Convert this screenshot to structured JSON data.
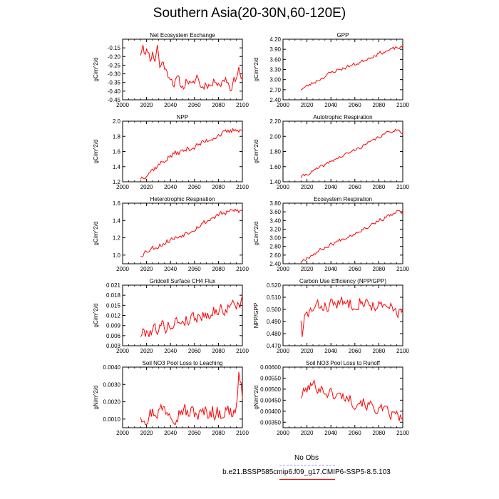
{
  "title": "Southern Asia(20-30N,60-120E)",
  "legend": {
    "obs_label": "No Obs",
    "obs_color": "#9999ff",
    "model_label": "b.e21.BSSP585cmip6.f09_g17.CMIP6-SSP5-8.5.103",
    "model_color": "#ff0000"
  },
  "chart_data": [
    {
      "type": "line",
      "title": "Net Ecosystem Exchange",
      "ylabel": "gC/m^2/d",
      "xlim": [
        2000,
        2100
      ],
      "xticks": [
        "2000",
        "2020",
        "2040",
        "2060",
        "2080",
        "2100"
      ],
      "ylim": [
        -0.45,
        -0.1
      ],
      "yticks": [
        "-0.45",
        "-0.40",
        "-0.35",
        "-0.30",
        "-0.25",
        "-0.20",
        "-0.15"
      ],
      "ytick_values": [
        -0.45,
        -0.4,
        -0.35,
        -0.3,
        -0.25,
        -0.2,
        -0.15
      ],
      "x_start": 2015,
      "x_end": 2100,
      "keypoints": [
        [
          2015,
          -0.18
        ],
        [
          2017,
          -0.12
        ],
        [
          2019,
          -0.19
        ],
        [
          2021,
          -0.16
        ],
        [
          2023,
          -0.21
        ],
        [
          2025,
          -0.18
        ],
        [
          2027,
          -0.22
        ],
        [
          2029,
          -0.13
        ],
        [
          2031,
          -0.26
        ],
        [
          2034,
          -0.23
        ],
        [
          2037,
          -0.3
        ],
        [
          2040,
          -0.31
        ],
        [
          2043,
          -0.36
        ],
        [
          2046,
          -0.33
        ],
        [
          2050,
          -0.38
        ],
        [
          2054,
          -0.33
        ],
        [
          2058,
          -0.38
        ],
        [
          2062,
          -0.31
        ],
        [
          2066,
          -0.38
        ],
        [
          2070,
          -0.35
        ],
        [
          2074,
          -0.37
        ],
        [
          2078,
          -0.33
        ],
        [
          2082,
          -0.36
        ],
        [
          2086,
          -0.32
        ],
        [
          2090,
          -0.38
        ],
        [
          2094,
          -0.33
        ],
        [
          2097,
          -0.27
        ],
        [
          2100,
          -0.34
        ]
      ],
      "noise": 0.025,
      "seed": 11,
      "color": "#ff0000"
    },
    {
      "type": "line",
      "title": "GPP",
      "ylabel": "gC/m^2/d",
      "xlim": [
        2000,
        2100
      ],
      "xticks": [
        "2000",
        "2020",
        "2040",
        "2060",
        "2080",
        "2100"
      ],
      "ylim": [
        2.4,
        4.2
      ],
      "yticks": [
        "2.40",
        "2.70",
        "3.00",
        "3.30",
        "3.60",
        "3.90",
        "4.20"
      ],
      "ytick_values": [
        2.4,
        2.7,
        3.0,
        3.3,
        3.6,
        3.9,
        4.2
      ],
      "x_start": 2015,
      "x_end": 2100,
      "keypoints": [
        [
          2015,
          2.72
        ],
        [
          2020,
          2.8
        ],
        [
          2025,
          2.9
        ],
        [
          2030,
          3.0
        ],
        [
          2035,
          3.1
        ],
        [
          2040,
          3.2
        ],
        [
          2045,
          3.28
        ],
        [
          2050,
          3.33
        ],
        [
          2055,
          3.4
        ],
        [
          2060,
          3.45
        ],
        [
          2065,
          3.52
        ],
        [
          2070,
          3.62
        ],
        [
          2075,
          3.7
        ],
        [
          2080,
          3.78
        ],
        [
          2085,
          3.83
        ],
        [
          2090,
          3.88
        ],
        [
          2095,
          3.95
        ],
        [
          2100,
          3.93
        ]
      ],
      "noise": 0.05,
      "seed": 23,
      "color": "#ff0000"
    },
    {
      "type": "line",
      "title": "NPP",
      "ylabel": "gC/m^2/d",
      "xlim": [
        2000,
        2100
      ],
      "xticks": [
        "2000",
        "2020",
        "2040",
        "2060",
        "2080",
        "2100"
      ],
      "ylim": [
        1.2,
        2.0
      ],
      "yticks": [
        "1.2",
        "1.4",
        "1.6",
        "1.8",
        "2.0"
      ],
      "ytick_values": [
        1.2,
        1.4,
        1.6,
        1.8,
        2.0
      ],
      "x_start": 2015,
      "x_end": 2100,
      "keypoints": [
        [
          2015,
          1.25
        ],
        [
          2020,
          1.3
        ],
        [
          2025,
          1.36
        ],
        [
          2030,
          1.42
        ],
        [
          2035,
          1.48
        ],
        [
          2040,
          1.54
        ],
        [
          2045,
          1.58
        ],
        [
          2050,
          1.6
        ],
        [
          2055,
          1.64
        ],
        [
          2060,
          1.66
        ],
        [
          2065,
          1.7
        ],
        [
          2070,
          1.74
        ],
        [
          2075,
          1.78
        ],
        [
          2080,
          1.82
        ],
        [
          2085,
          1.84
        ],
        [
          2090,
          1.86
        ],
        [
          2095,
          1.9
        ],
        [
          2100,
          1.88
        ]
      ],
      "noise": 0.035,
      "seed": 37,
      "color": "#ff0000"
    },
    {
      "type": "line",
      "title": "Autotrophic Respiration",
      "ylabel": "gC/m^2/d",
      "xlim": [
        2000,
        2100
      ],
      "xticks": [
        "2000",
        "2020",
        "2040",
        "2060",
        "2080",
        "2100"
      ],
      "ylim": [
        1.4,
        2.2
      ],
      "yticks": [
        "1.40",
        "1.60",
        "1.80",
        "2.00",
        "2.20"
      ],
      "ytick_values": [
        1.4,
        1.6,
        1.8,
        2.0,
        2.2
      ],
      "x_start": 2015,
      "x_end": 2100,
      "keypoints": [
        [
          2015,
          1.46
        ],
        [
          2020,
          1.5
        ],
        [
          2025,
          1.54
        ],
        [
          2030,
          1.58
        ],
        [
          2035,
          1.62
        ],
        [
          2040,
          1.67
        ],
        [
          2045,
          1.71
        ],
        [
          2050,
          1.74
        ],
        [
          2055,
          1.78
        ],
        [
          2060,
          1.82
        ],
        [
          2065,
          1.86
        ],
        [
          2070,
          1.9
        ],
        [
          2075,
          1.94
        ],
        [
          2080,
          1.99
        ],
        [
          2085,
          2.03
        ],
        [
          2090,
          2.07
        ],
        [
          2095,
          2.09
        ],
        [
          2100,
          2.05
        ]
      ],
      "noise": 0.02,
      "seed": 41,
      "color": "#ff0000"
    },
    {
      "type": "line",
      "title": "Heterotrophic Respiration",
      "ylabel": "gC/m^2/d",
      "xlim": [
        2000,
        2100
      ],
      "xticks": [
        "2000",
        "2020",
        "2040",
        "2060",
        "2080",
        "2100"
      ],
      "ylim": [
        0.9,
        1.6
      ],
      "yticks": [
        "1.0",
        "1.2",
        "1.4",
        "1.6"
      ],
      "ytick_values": [
        1.0,
        1.2,
        1.4,
        1.6
      ],
      "x_start": 2015,
      "x_end": 2100,
      "keypoints": [
        [
          2015,
          1.0
        ],
        [
          2020,
          1.05
        ],
        [
          2025,
          1.08
        ],
        [
          2030,
          1.11
        ],
        [
          2035,
          1.14
        ],
        [
          2040,
          1.18
        ],
        [
          2045,
          1.2
        ],
        [
          2050,
          1.24
        ],
        [
          2055,
          1.27
        ],
        [
          2060,
          1.31
        ],
        [
          2065,
          1.35
        ],
        [
          2070,
          1.39
        ],
        [
          2075,
          1.43
        ],
        [
          2080,
          1.47
        ],
        [
          2085,
          1.48
        ],
        [
          2090,
          1.5
        ],
        [
          2095,
          1.52
        ],
        [
          2100,
          1.5
        ]
      ],
      "noise": 0.03,
      "seed": 53,
      "color": "#ff0000"
    },
    {
      "type": "line",
      "title": "Ecosystem Respiration",
      "ylabel": "gC/m^2/d",
      "xlim": [
        2000,
        2100
      ],
      "xticks": [
        "2000",
        "2020",
        "2040",
        "2060",
        "2080",
        "2100"
      ],
      "ylim": [
        2.4,
        3.8
      ],
      "yticks": [
        "2.40",
        "2.60",
        "2.80",
        "3.00",
        "3.20",
        "3.40",
        "3.60",
        "3.80"
      ],
      "ytick_values": [
        2.4,
        2.6,
        2.8,
        3.0,
        3.2,
        3.4,
        3.6,
        3.8
      ],
      "x_start": 2015,
      "x_end": 2100,
      "keypoints": [
        [
          2015,
          2.46
        ],
        [
          2020,
          2.54
        ],
        [
          2025,
          2.62
        ],
        [
          2030,
          2.7
        ],
        [
          2035,
          2.77
        ],
        [
          2040,
          2.85
        ],
        [
          2045,
          2.91
        ],
        [
          2050,
          2.98
        ],
        [
          2055,
          3.04
        ],
        [
          2060,
          3.11
        ],
        [
          2065,
          3.18
        ],
        [
          2070,
          3.25
        ],
        [
          2075,
          3.33
        ],
        [
          2080,
          3.4
        ],
        [
          2085,
          3.46
        ],
        [
          2090,
          3.52
        ],
        [
          2095,
          3.6
        ],
        [
          2100,
          3.58
        ]
      ],
      "noise": 0.04,
      "seed": 67,
      "color": "#ff0000"
    },
    {
      "type": "line",
      "title": "Gridcell Surface CH4 Flux",
      "ylabel": "gC/m^2/d",
      "xlim": [
        2000,
        2100
      ],
      "xticks": [
        "2000",
        "2020",
        "2040",
        "2060",
        "2080",
        "2100"
      ],
      "ylim": [
        0.003,
        0.021
      ],
      "yticks": [
        "0.003",
        "0.006",
        "0.009",
        "0.012",
        "0.015",
        "0.018",
        "0.021"
      ],
      "ytick_values": [
        0.003,
        0.006,
        0.009,
        0.012,
        0.015,
        0.018,
        0.021
      ],
      "x_start": 2015,
      "x_end": 2100,
      "keypoints": [
        [
          2015,
          0.0065
        ],
        [
          2020,
          0.0072
        ],
        [
          2025,
          0.0078
        ],
        [
          2030,
          0.0085
        ],
        [
          2035,
          0.0088
        ],
        [
          2040,
          0.0092
        ],
        [
          2045,
          0.01
        ],
        [
          2050,
          0.0105
        ],
        [
          2055,
          0.011
        ],
        [
          2060,
          0.0115
        ],
        [
          2065,
          0.012
        ],
        [
          2070,
          0.0125
        ],
        [
          2075,
          0.013
        ],
        [
          2080,
          0.0135
        ],
        [
          2085,
          0.014
        ],
        [
          2090,
          0.0145
        ],
        [
          2095,
          0.0155
        ],
        [
          2100,
          0.016
        ]
      ],
      "noise": 0.0018,
      "seed": 79,
      "color": "#ff0000"
    },
    {
      "type": "line",
      "title": "Carbon Use Efficiency (NPP/GPP)",
      "ylabel": "NPP/GPP",
      "xlim": [
        2000,
        2100
      ],
      "xticks": [
        "2000",
        "2020",
        "2040",
        "2060",
        "2080",
        "2100"
      ],
      "ylim": [
        0.47,
        0.52
      ],
      "yticks": [
        "0.470",
        "0.480",
        "0.490",
        "0.500",
        "0.510",
        "0.520"
      ],
      "ytick_values": [
        0.47,
        0.48,
        0.49,
        0.5,
        0.51,
        0.52
      ],
      "x_start": 2015,
      "x_end": 2100,
      "keypoints": [
        [
          2015,
          0.493
        ],
        [
          2016,
          0.475
        ],
        [
          2018,
          0.492
        ],
        [
          2022,
          0.498
        ],
        [
          2026,
          0.5
        ],
        [
          2030,
          0.502
        ],
        [
          2035,
          0.503
        ],
        [
          2040,
          0.504
        ],
        [
          2045,
          0.505
        ],
        [
          2050,
          0.505
        ],
        [
          2055,
          0.505
        ],
        [
          2060,
          0.506
        ],
        [
          2065,
          0.508
        ],
        [
          2070,
          0.505
        ],
        [
          2075,
          0.504
        ],
        [
          2080,
          0.503
        ],
        [
          2085,
          0.5
        ],
        [
          2090,
          0.501
        ],
        [
          2095,
          0.499
        ],
        [
          2100,
          0.498
        ]
      ],
      "noise": 0.005,
      "seed": 83,
      "color": "#ff0000"
    },
    {
      "type": "line",
      "title": "Soil NO3 Pool Loss to Leaching",
      "ylabel": "gN/m^2/d",
      "xlim": [
        2000,
        2100
      ],
      "xticks": [
        "2000",
        "2020",
        "2040",
        "2060",
        "2080",
        "2100"
      ],
      "ylim": [
        0.0005,
        0.004
      ],
      "yticks": [
        "0.0010",
        "0.0020",
        "0.0030",
        "0.0040"
      ],
      "ytick_values": [
        0.001,
        0.002,
        0.003,
        0.004
      ],
      "x_start": 2015,
      "x_end": 2100,
      "keypoints": [
        [
          2015,
          0.0013
        ],
        [
          2020,
          0.0012
        ],
        [
          2025,
          0.0014
        ],
        [
          2030,
          0.0015
        ],
        [
          2035,
          0.0016
        ],
        [
          2040,
          0.0015
        ],
        [
          2045,
          0.0013
        ],
        [
          2050,
          0.0016
        ],
        [
          2055,
          0.0013
        ],
        [
          2060,
          0.0014
        ],
        [
          2065,
          0.0012
        ],
        [
          2070,
          0.0014
        ],
        [
          2075,
          0.0015
        ],
        [
          2080,
          0.0013
        ],
        [
          2085,
          0.0015
        ],
        [
          2090,
          0.0014
        ],
        [
          2095,
          0.0016
        ],
        [
          2097,
          0.0037
        ],
        [
          2099,
          0.0028
        ],
        [
          2100,
          0.0017
        ]
      ],
      "noise": 0.00045,
      "seed": 97,
      "color": "#ff0000"
    },
    {
      "type": "line",
      "title": "Soil NO3 Pool Loss to Runoff",
      "ylabel": "gN/m^2/d",
      "xlim": [
        2000,
        2100
      ],
      "xticks": [
        "2000",
        "2020",
        "2040",
        "2060",
        "2080",
        "2100"
      ],
      "ylim": [
        0.00325,
        0.006
      ],
      "yticks": [
        "0.00350",
        "0.00400",
        "0.00450",
        "0.00500",
        "0.00550",
        "0.00600"
      ],
      "ytick_values": [
        0.0035,
        0.004,
        0.0045,
        0.005,
        0.0055,
        0.006
      ],
      "x_start": 2015,
      "x_end": 2100,
      "keypoints": [
        [
          2015,
          0.0047
        ],
        [
          2020,
          0.005
        ],
        [
          2025,
          0.0052
        ],
        [
          2030,
          0.0051
        ],
        [
          2035,
          0.0049
        ],
        [
          2040,
          0.0048
        ],
        [
          2045,
          0.0047
        ],
        [
          2050,
          0.0047
        ],
        [
          2055,
          0.0046
        ],
        [
          2060,
          0.0044
        ],
        [
          2065,
          0.0045
        ],
        [
          2070,
          0.0043
        ],
        [
          2075,
          0.0042
        ],
        [
          2080,
          0.0041
        ],
        [
          2085,
          0.00395
        ],
        [
          2090,
          0.00385
        ],
        [
          2095,
          0.0038
        ],
        [
          2100,
          0.0036
        ]
      ],
      "noise": 0.00025,
      "seed": 101,
      "color": "#ff0000"
    }
  ]
}
